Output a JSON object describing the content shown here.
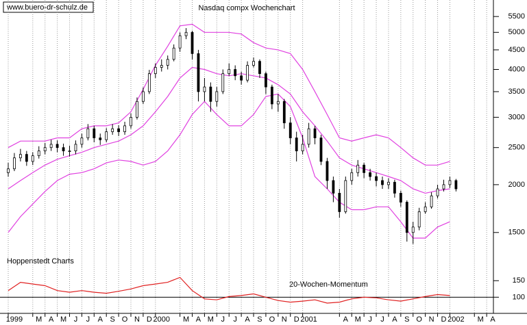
{
  "chart_data": {
    "type": "candlestick",
    "title": "Nasdaq compx Wochenchart",
    "annotations": [
      "www.buero-dr-schulz.de",
      "Hoppenstedt Charts"
    ],
    "log_scale": true,
    "xlim": [
      -0.67,
      39.55
    ],
    "xticks": [
      {
        "value": 0,
        "label": "1999"
      },
      {
        "value": 2,
        "label": "M"
      },
      {
        "value": 3,
        "label": "A"
      },
      {
        "value": 4,
        "label": "M"
      },
      {
        "value": 5,
        "label": "J"
      },
      {
        "value": 6,
        "label": "J"
      },
      {
        "value": 7,
        "label": "A"
      },
      {
        "value": 8,
        "label": "S"
      },
      {
        "value": 9,
        "label": "O"
      },
      {
        "value": 10,
        "label": "N"
      },
      {
        "value": 11,
        "label": "D"
      },
      {
        "value": 12,
        "label": "2000"
      },
      {
        "value": 14,
        "label": "M"
      },
      {
        "value": 15,
        "label": "A"
      },
      {
        "value": 16,
        "label": "M"
      },
      {
        "value": 17,
        "label": "J"
      },
      {
        "value": 18,
        "label": "J"
      },
      {
        "value": 19,
        "label": "A"
      },
      {
        "value": 20,
        "label": "S"
      },
      {
        "value": 21,
        "label": "O"
      },
      {
        "value": 22,
        "label": "N"
      },
      {
        "value": 23,
        "label": "D"
      },
      {
        "value": 24,
        "label": "2001"
      },
      {
        "value": 27,
        "label": "A"
      },
      {
        "value": 28,
        "label": "M"
      },
      {
        "value": 29,
        "label": "J"
      },
      {
        "value": 30,
        "label": "J"
      },
      {
        "value": 31,
        "label": "A"
      },
      {
        "value": 32,
        "label": "S"
      },
      {
        "value": 33,
        "label": "O"
      },
      {
        "value": 34,
        "label": "N"
      },
      {
        "value": 35,
        "label": "D"
      },
      {
        "value": 36,
        "label": "2002"
      },
      {
        "value": 38,
        "label": "M"
      },
      {
        "value": 39,
        "label": "A"
      }
    ],
    "ylim": [
      1200,
      6000
    ],
    "yticks": [
      1500,
      2000,
      2500,
      3000,
      3500,
      4000,
      4500,
      5000,
      5500
    ],
    "y2lim": [
      80,
      165
    ],
    "y2ticks": [
      100,
      150
    ],
    "y2_baseline": 100,
    "grid": true,
    "candles": {
      "color": "#000000",
      "x": [
        0,
        0.5,
        1,
        1.5,
        2,
        2.5,
        3,
        3.5,
        4,
        4.5,
        5,
        5.5,
        6,
        6.5,
        7,
        7.5,
        8,
        8.5,
        9,
        9.5,
        10,
        10.5,
        11,
        11.5,
        12,
        12.5,
        13,
        13.5,
        14,
        14.5,
        15,
        15.5,
        16,
        16.5,
        17,
        17.5,
        18,
        18.5,
        19,
        19.5,
        20,
        20.5,
        21,
        21.5,
        22,
        22.5,
        23,
        23.5,
        24,
        24.5,
        25,
        25.5,
        26,
        26.5,
        27,
        27.5,
        28,
        28.5,
        29,
        29.5,
        30,
        30.5,
        31,
        31.5,
        32,
        32.5,
        33,
        33.5,
        34,
        34.5,
        35,
        35.5,
        36,
        36.5
      ],
      "open": [
        2150,
        2200,
        2350,
        2400,
        2300,
        2380,
        2450,
        2500,
        2550,
        2500,
        2450,
        2450,
        2550,
        2650,
        2800,
        2650,
        2620,
        2750,
        2800,
        2750,
        2850,
        3000,
        3300,
        3500,
        3900,
        4050,
        4100,
        4250,
        4550,
        4900,
        5000,
        4400,
        3500,
        3600,
        3300,
        3500,
        3900,
        4000,
        3850,
        3750,
        4100,
        4200,
        3900,
        3600,
        3250,
        3300,
        2900,
        2650,
        2450,
        2550,
        2800,
        2650,
        2300,
        2050,
        1900,
        1700,
        2050,
        2150,
        2250,
        2150,
        2100,
        2050,
        2000,
        2030,
        1900,
        1800,
        1500,
        1550,
        1700,
        1750,
        1870,
        1950,
        2000,
        2050
      ],
      "high": [
        2280,
        2420,
        2480,
        2450,
        2430,
        2520,
        2570,
        2620,
        2610,
        2560,
        2530,
        2610,
        2720,
        2880,
        2850,
        2720,
        2810,
        2880,
        2860,
        2920,
        3070,
        3380,
        3590,
        3990,
        4150,
        4250,
        4350,
        4650,
        5000,
        5130,
        5050,
        4500,
        3800,
        3700,
        3600,
        4000,
        4150,
        4100,
        3950,
        4200,
        4300,
        4250,
        3950,
        3650,
        3450,
        3350,
        3000,
        2750,
        2700,
        2900,
        2850,
        2700,
        2350,
        2100,
        1950,
        2100,
        2200,
        2320,
        2280,
        2200,
        2150,
        2100,
        2080,
        2060,
        1930,
        1820,
        1600,
        1740,
        1800,
        1910,
        2000,
        2060,
        2100,
        2070
      ],
      "low": [
        2100,
        2170,
        2300,
        2240,
        2250,
        2340,
        2400,
        2450,
        2430,
        2380,
        2370,
        2400,
        2500,
        2610,
        2580,
        2540,
        2580,
        2700,
        2680,
        2700,
        2800,
        2960,
        3250,
        3450,
        3800,
        3950,
        4000,
        4200,
        4450,
        4800,
        4250,
        3300,
        3300,
        3100,
        3200,
        3450,
        3850,
        3750,
        3650,
        3700,
        4050,
        3800,
        3450,
        3150,
        3100,
        2800,
        2550,
        2300,
        2400,
        2500,
        2550,
        2250,
        1950,
        1800,
        1640,
        1680,
        2000,
        2100,
        2080,
        2050,
        1980,
        1950,
        1950,
        1850,
        1750,
        1420,
        1400,
        1520,
        1680,
        1730,
        1840,
        1920,
        1960,
        1920
      ],
      "close": [
        2200,
        2350,
        2400,
        2300,
        2380,
        2450,
        2500,
        2550,
        2500,
        2450,
        2450,
        2550,
        2650,
        2800,
        2650,
        2620,
        2750,
        2800,
        2750,
        2850,
        3000,
        3300,
        3500,
        3900,
        4050,
        4100,
        4250,
        4550,
        4900,
        5000,
        4400,
        3500,
        3600,
        3300,
        3500,
        3900,
        4000,
        3850,
        3750,
        4100,
        4200,
        3900,
        3600,
        3250,
        3300,
        2900,
        2650,
        2450,
        2550,
        2800,
        2650,
        2300,
        2050,
        1900,
        1700,
        2050,
        2150,
        2250,
        2150,
        2100,
        2050,
        2000,
        2030,
        1900,
        1800,
        1500,
        1550,
        1700,
        1750,
        1870,
        1950,
        2000,
        2050,
        1950
      ]
    },
    "bands": {
      "color": "#e040e0",
      "x": [
        0,
        1,
        2,
        3,
        4,
        5,
        6,
        7,
        8,
        9,
        10,
        11,
        12,
        13,
        14,
        15,
        16,
        17,
        18,
        19,
        20,
        21,
        22,
        23,
        24,
        25,
        26,
        27,
        28,
        29,
        30,
        31,
        32,
        33,
        34,
        35,
        36
      ],
      "upper": [
        2500,
        2600,
        2600,
        2600,
        2650,
        2650,
        2800,
        2850,
        2850,
        2900,
        3100,
        3550,
        4100,
        4600,
        5200,
        5250,
        5000,
        5000,
        5000,
        4950,
        4700,
        4550,
        4500,
        4400,
        4000,
        3500,
        3050,
        2650,
        2600,
        2650,
        2700,
        2650,
        2500,
        2350,
        2250,
        2250,
        2300
      ],
      "middle": [
        1950,
        2050,
        2150,
        2250,
        2330,
        2380,
        2430,
        2500,
        2550,
        2600,
        2700,
        2850,
        3100,
        3400,
        3800,
        4050,
        4000,
        3900,
        3850,
        3900,
        3850,
        3800,
        3650,
        3450,
        3100,
        2850,
        2600,
        2350,
        2250,
        2200,
        2150,
        2100,
        2050,
        1950,
        1900,
        1930,
        1950
      ],
      "lower": [
        1500,
        1650,
        1780,
        1920,
        2050,
        2130,
        2150,
        2200,
        2280,
        2320,
        2300,
        2250,
        2300,
        2450,
        2700,
        3050,
        3300,
        3050,
        2850,
        2850,
        3050,
        3400,
        3450,
        3200,
        2650,
        2100,
        1950,
        1800,
        1720,
        1720,
        1750,
        1750,
        1600,
        1450,
        1450,
        1550,
        1600
      ]
    },
    "momentum": {
      "name": "20-Wochen-Momentum",
      "color": "#e02020",
      "axis": "y2",
      "x": [
        0,
        1,
        2,
        3,
        4,
        5,
        6,
        7,
        8,
        9,
        10,
        11,
        12,
        13,
        14,
        15,
        16,
        17,
        18,
        19,
        20,
        21,
        22,
        23,
        24,
        25,
        26,
        27,
        28,
        29,
        30,
        31,
        32,
        33,
        34,
        35,
        36
      ],
      "values": [
        120,
        145,
        140,
        135,
        120,
        115,
        120,
        115,
        112,
        118,
        125,
        135,
        140,
        145,
        160,
        120,
        95,
        92,
        102,
        105,
        110,
        100,
        90,
        85,
        88,
        92,
        82,
        85,
        95,
        100,
        98,
        92,
        88,
        95,
        102,
        108,
        105
      ]
    }
  }
}
